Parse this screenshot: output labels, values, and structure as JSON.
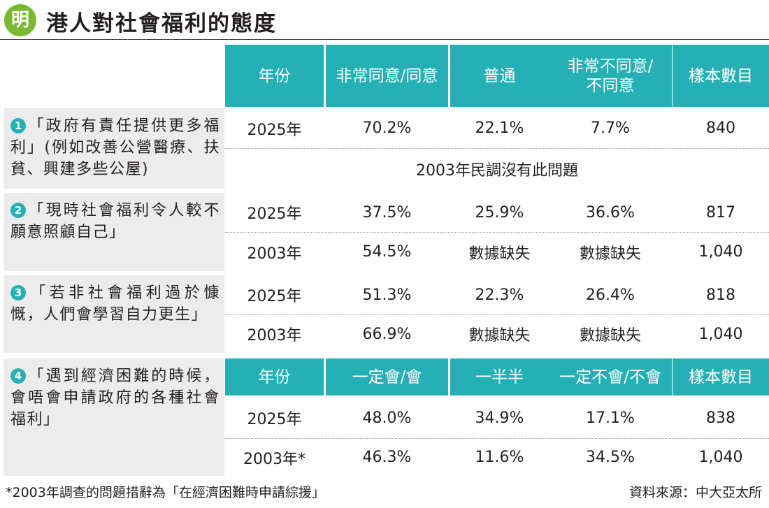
{
  "header": {
    "logo": "明",
    "title": "港人對社會福利的態度"
  },
  "table1_headers": [
    "年份",
    "非常同意/同意",
    "普通",
    "非常不同意/\n不同意",
    "樣本數目"
  ],
  "questions": [
    {
      "num": "1",
      "text": "「政府有責任提供更多福利」(例如改善公營醫療、扶貧、興建多些公屋)"
    },
    {
      "num": "2",
      "text": "「現時社會福利令人較不願意照顧自己」"
    },
    {
      "num": "3",
      "text": "「若非社會福利過於慷慨，人們會學習自力更生」"
    },
    {
      "num": "4",
      "text": "「遇到經濟困難的時候，會唔會申請政府的各種社會福利」"
    }
  ],
  "rows": {
    "q1_2025": [
      "2025年",
      "70.2%",
      "22.1%",
      "7.7%",
      "840"
    ],
    "q1_note": "2003年民調沒有此問題",
    "q2_2025": [
      "2025年",
      "37.5%",
      "25.9%",
      "36.6%",
      "817"
    ],
    "q2_2003": [
      "2003年",
      "54.5%",
      "數據缺失",
      "數據缺失",
      "1,040"
    ],
    "q3_2025": [
      "2025年",
      "51.3%",
      "22.3%",
      "26.4%",
      "818"
    ],
    "q3_2003": [
      "2003年",
      "66.9%",
      "數據缺失",
      "數據缺失",
      "1,040"
    ],
    "q4_2025": [
      "2025年",
      "48.0%",
      "34.9%",
      "17.1%",
      "838"
    ],
    "q4_2003": [
      "2003年*",
      "46.3%",
      "11.6%",
      "34.5%",
      "1,040"
    ]
  },
  "table2_headers": [
    "年份",
    "一定會/會",
    "一半半",
    "一定不會/不會",
    "樣本數目"
  ],
  "footer": {
    "note": "*2003年調查的問題措辭為「在經濟困難時申請綜援」",
    "source": "資料來源：中大亞太所"
  },
  "colors": {
    "header_teal": "#24b0b4",
    "question_bg": "#ececec",
    "logo_green": "#78b833"
  }
}
